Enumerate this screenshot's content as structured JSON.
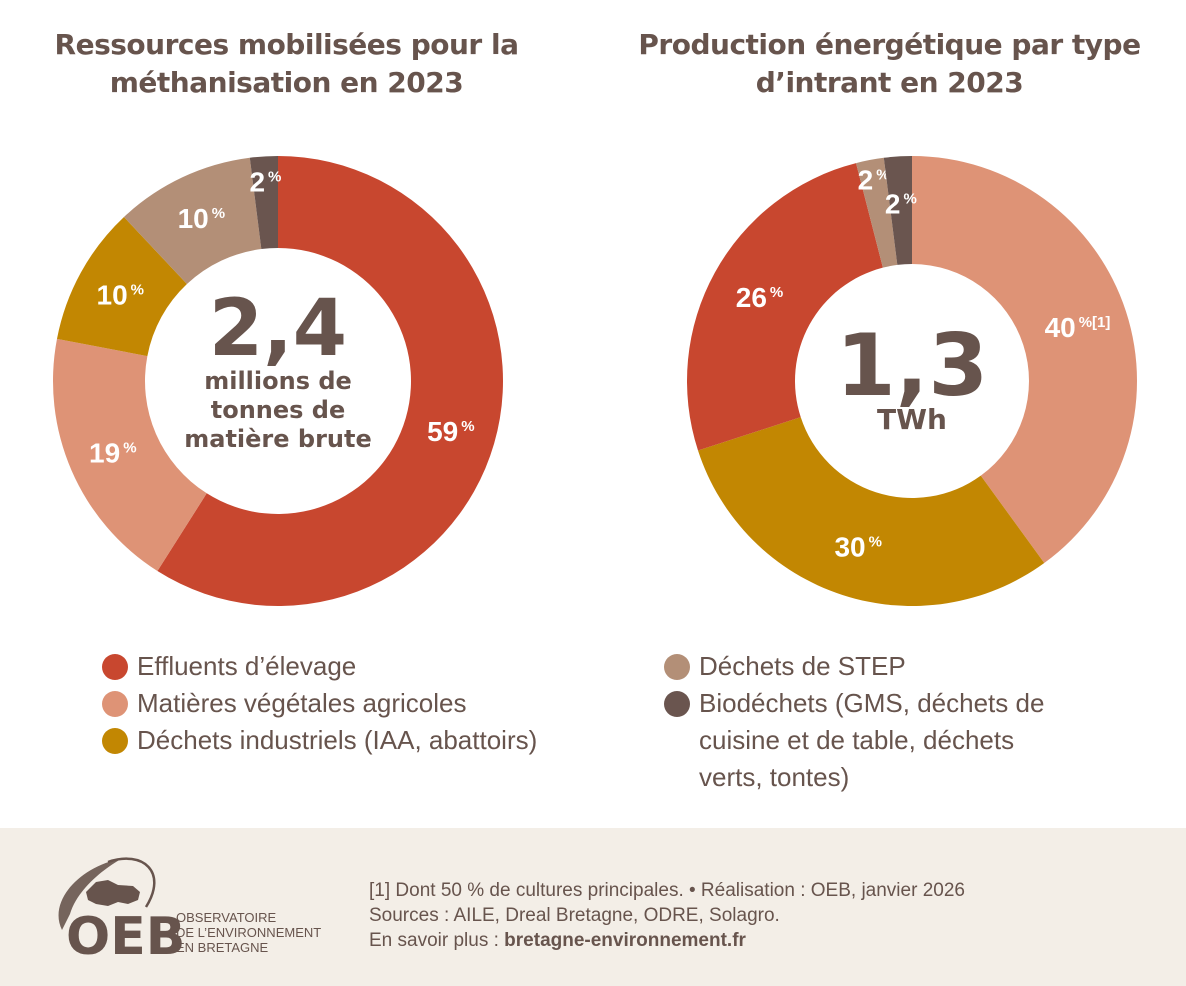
{
  "titles": {
    "left": "Ressources mobilisées pour la méthanisation en 2023",
    "right": "Production énergétique par type d’intrant en 2023"
  },
  "colors": {
    "effluents": "#c8472f",
    "vegetales": "#de9376",
    "industriels": "#c28702",
    "step": "#b38f77",
    "biodechets": "#6a554f",
    "text": "#67544d",
    "footer_bg": "#f3eee7"
  },
  "chart_data": [
    {
      "type": "pie",
      "subtype": "donut",
      "title": "Ressources mobilisées pour la méthanisation en 2023",
      "center_value": "2,4",
      "center_label": [
        "millions de",
        "tonnes de",
        "matière brute"
      ],
      "start": "top",
      "direction": "clockwise",
      "slices": [
        {
          "key": "effluents",
          "label": "Effluents d’élevage",
          "value": 59,
          "text": "59",
          "suffix": "%"
        },
        {
          "key": "vegetales",
          "label": "Matières végétales agricoles",
          "value": 19,
          "text": "19",
          "suffix": "%"
        },
        {
          "key": "industriels",
          "label": "Déchets industriels (IAA, abattoirs)",
          "value": 10,
          "text": "10",
          "suffix": "%"
        },
        {
          "key": "step",
          "label": "Déchets de STEP",
          "value": 10,
          "text": "10",
          "suffix": "%"
        },
        {
          "key": "biodechets",
          "label": "Biodéchets (GMS, déchets de cuisine et de table, déchets verts, tontes)",
          "value": 2,
          "text": "2",
          "suffix": "%"
        }
      ]
    },
    {
      "type": "pie",
      "subtype": "donut",
      "title": "Production énergétique par type d’intrant en 2023",
      "center_value": "1,3",
      "center_label": [
        "TWh"
      ],
      "start": "top",
      "direction": "clockwise",
      "slices": [
        {
          "key": "vegetales",
          "label": "Matières végétales agricoles",
          "value": 40,
          "text": "40",
          "suffix": "%[1]"
        },
        {
          "key": "industriels",
          "label": "Déchets industriels (IAA, abattoirs)",
          "value": 30,
          "text": "30",
          "suffix": "%"
        },
        {
          "key": "effluents",
          "label": "Effluents d’élevage",
          "value": 26,
          "text": "26",
          "suffix": "%"
        },
        {
          "key": "step",
          "label": "Déchets de STEP",
          "value": 2,
          "text": "2",
          "suffix": "%"
        },
        {
          "key": "biodechets",
          "label": "Biodéchets (GMS, déchets de cuisine et de table, déchets verts, tontes)",
          "value": 2,
          "text": "2",
          "suffix": "%"
        }
      ]
    }
  ],
  "legend": {
    "left": [
      {
        "key": "effluents",
        "label": "Effluents d’élevage"
      },
      {
        "key": "vegetales",
        "label": "Matières végétales agricoles"
      },
      {
        "key": "industriels",
        "label": "Déchets industriels (IAA, abattoirs)"
      }
    ],
    "right": [
      {
        "key": "step",
        "label": "Déchets de STEP"
      },
      {
        "key": "biodechets",
        "label": "Biodéchets (GMS, déchets de cuisine et de table, déchets verts, tontes)"
      }
    ]
  },
  "footer": {
    "logo_acronym": "OEB",
    "logo_line1": "OBSERVATOIRE",
    "logo_line2": "DE L’ENVIRONNEMENT",
    "logo_line3": "EN BRETAGNE",
    "note": "[1] Dont 50 % de cultures principales. • Réalisation : OEB, janvier 2026",
    "sources": "Sources : AILE, Dreal Bretagne, ODRE, Solagro.",
    "more_prefix": "En savoir plus : ",
    "more_link": "bretagne-environnement.fr"
  }
}
